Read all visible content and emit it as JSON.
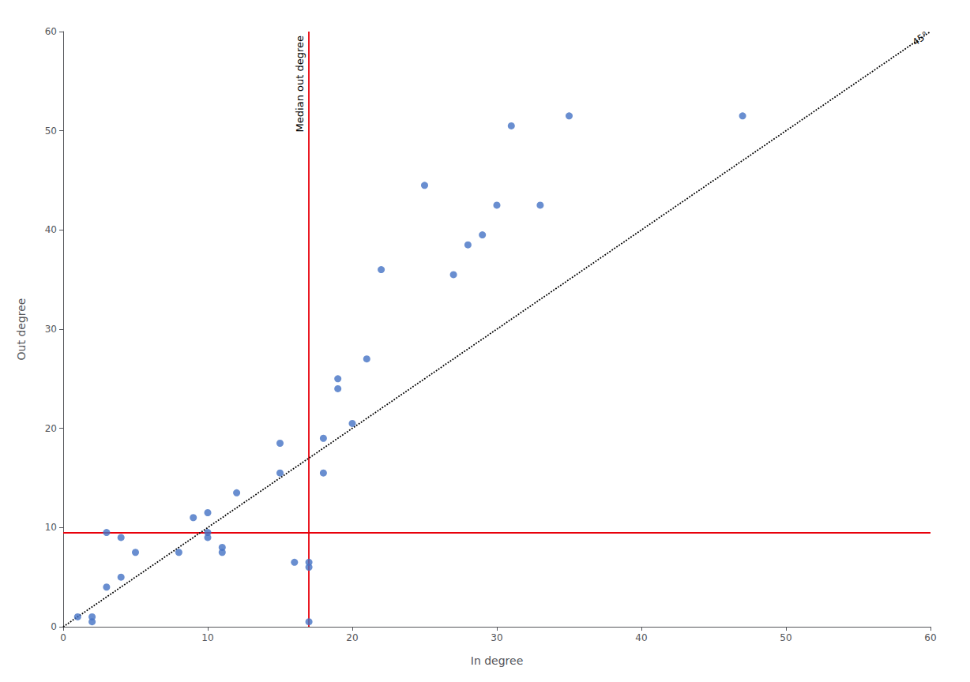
{
  "chart_data": {
    "type": "scatter",
    "x": [
      1,
      2,
      2,
      3,
      3,
      4,
      4,
      5,
      8,
      9,
      10,
      10,
      10,
      11,
      11,
      12,
      15,
      15,
      16,
      17,
      17,
      17,
      18,
      18,
      19,
      19,
      20,
      21,
      22,
      25,
      27,
      28,
      29,
      30,
      31,
      33,
      35,
      47
    ],
    "values": [
      1,
      1,
      0.5,
      9.5,
      4,
      9,
      5,
      7.5,
      7.5,
      11,
      11.5,
      9.5,
      9,
      8,
      7.5,
      13.5,
      18.5,
      15.5,
      6.5,
      6,
      6.5,
      0.5,
      19,
      15.5,
      24,
      25,
      20.5,
      27,
      36,
      44.5,
      35.5,
      38.5,
      39.5,
      42.5,
      50.5,
      42.5,
      51.5,
      51.5
    ],
    "color": "#4472c4",
    "marker": "circle",
    "xlabel": "In degree",
    "ylabel": "Out degree",
    "xlim": [
      0,
      60
    ],
    "ylim": [
      0,
      60
    ],
    "xticks": [
      0,
      10,
      20,
      30,
      40,
      50,
      60
    ],
    "yticks": [
      0,
      10,
      20,
      30,
      40,
      50,
      60
    ],
    "grid": false,
    "vline": {
      "x": 17.0,
      "color": "#e8000b",
      "line_style": "solid",
      "label": "Median out degree"
    },
    "hline": {
      "y": 9.5,
      "color": "#e8000b",
      "line_style": "solid"
    },
    "diagonal": {
      "from": [
        0,
        0
      ],
      "to": [
        60,
        60
      ],
      "color": "#000000",
      "line_style": "dotted",
      "label": "45°"
    }
  }
}
